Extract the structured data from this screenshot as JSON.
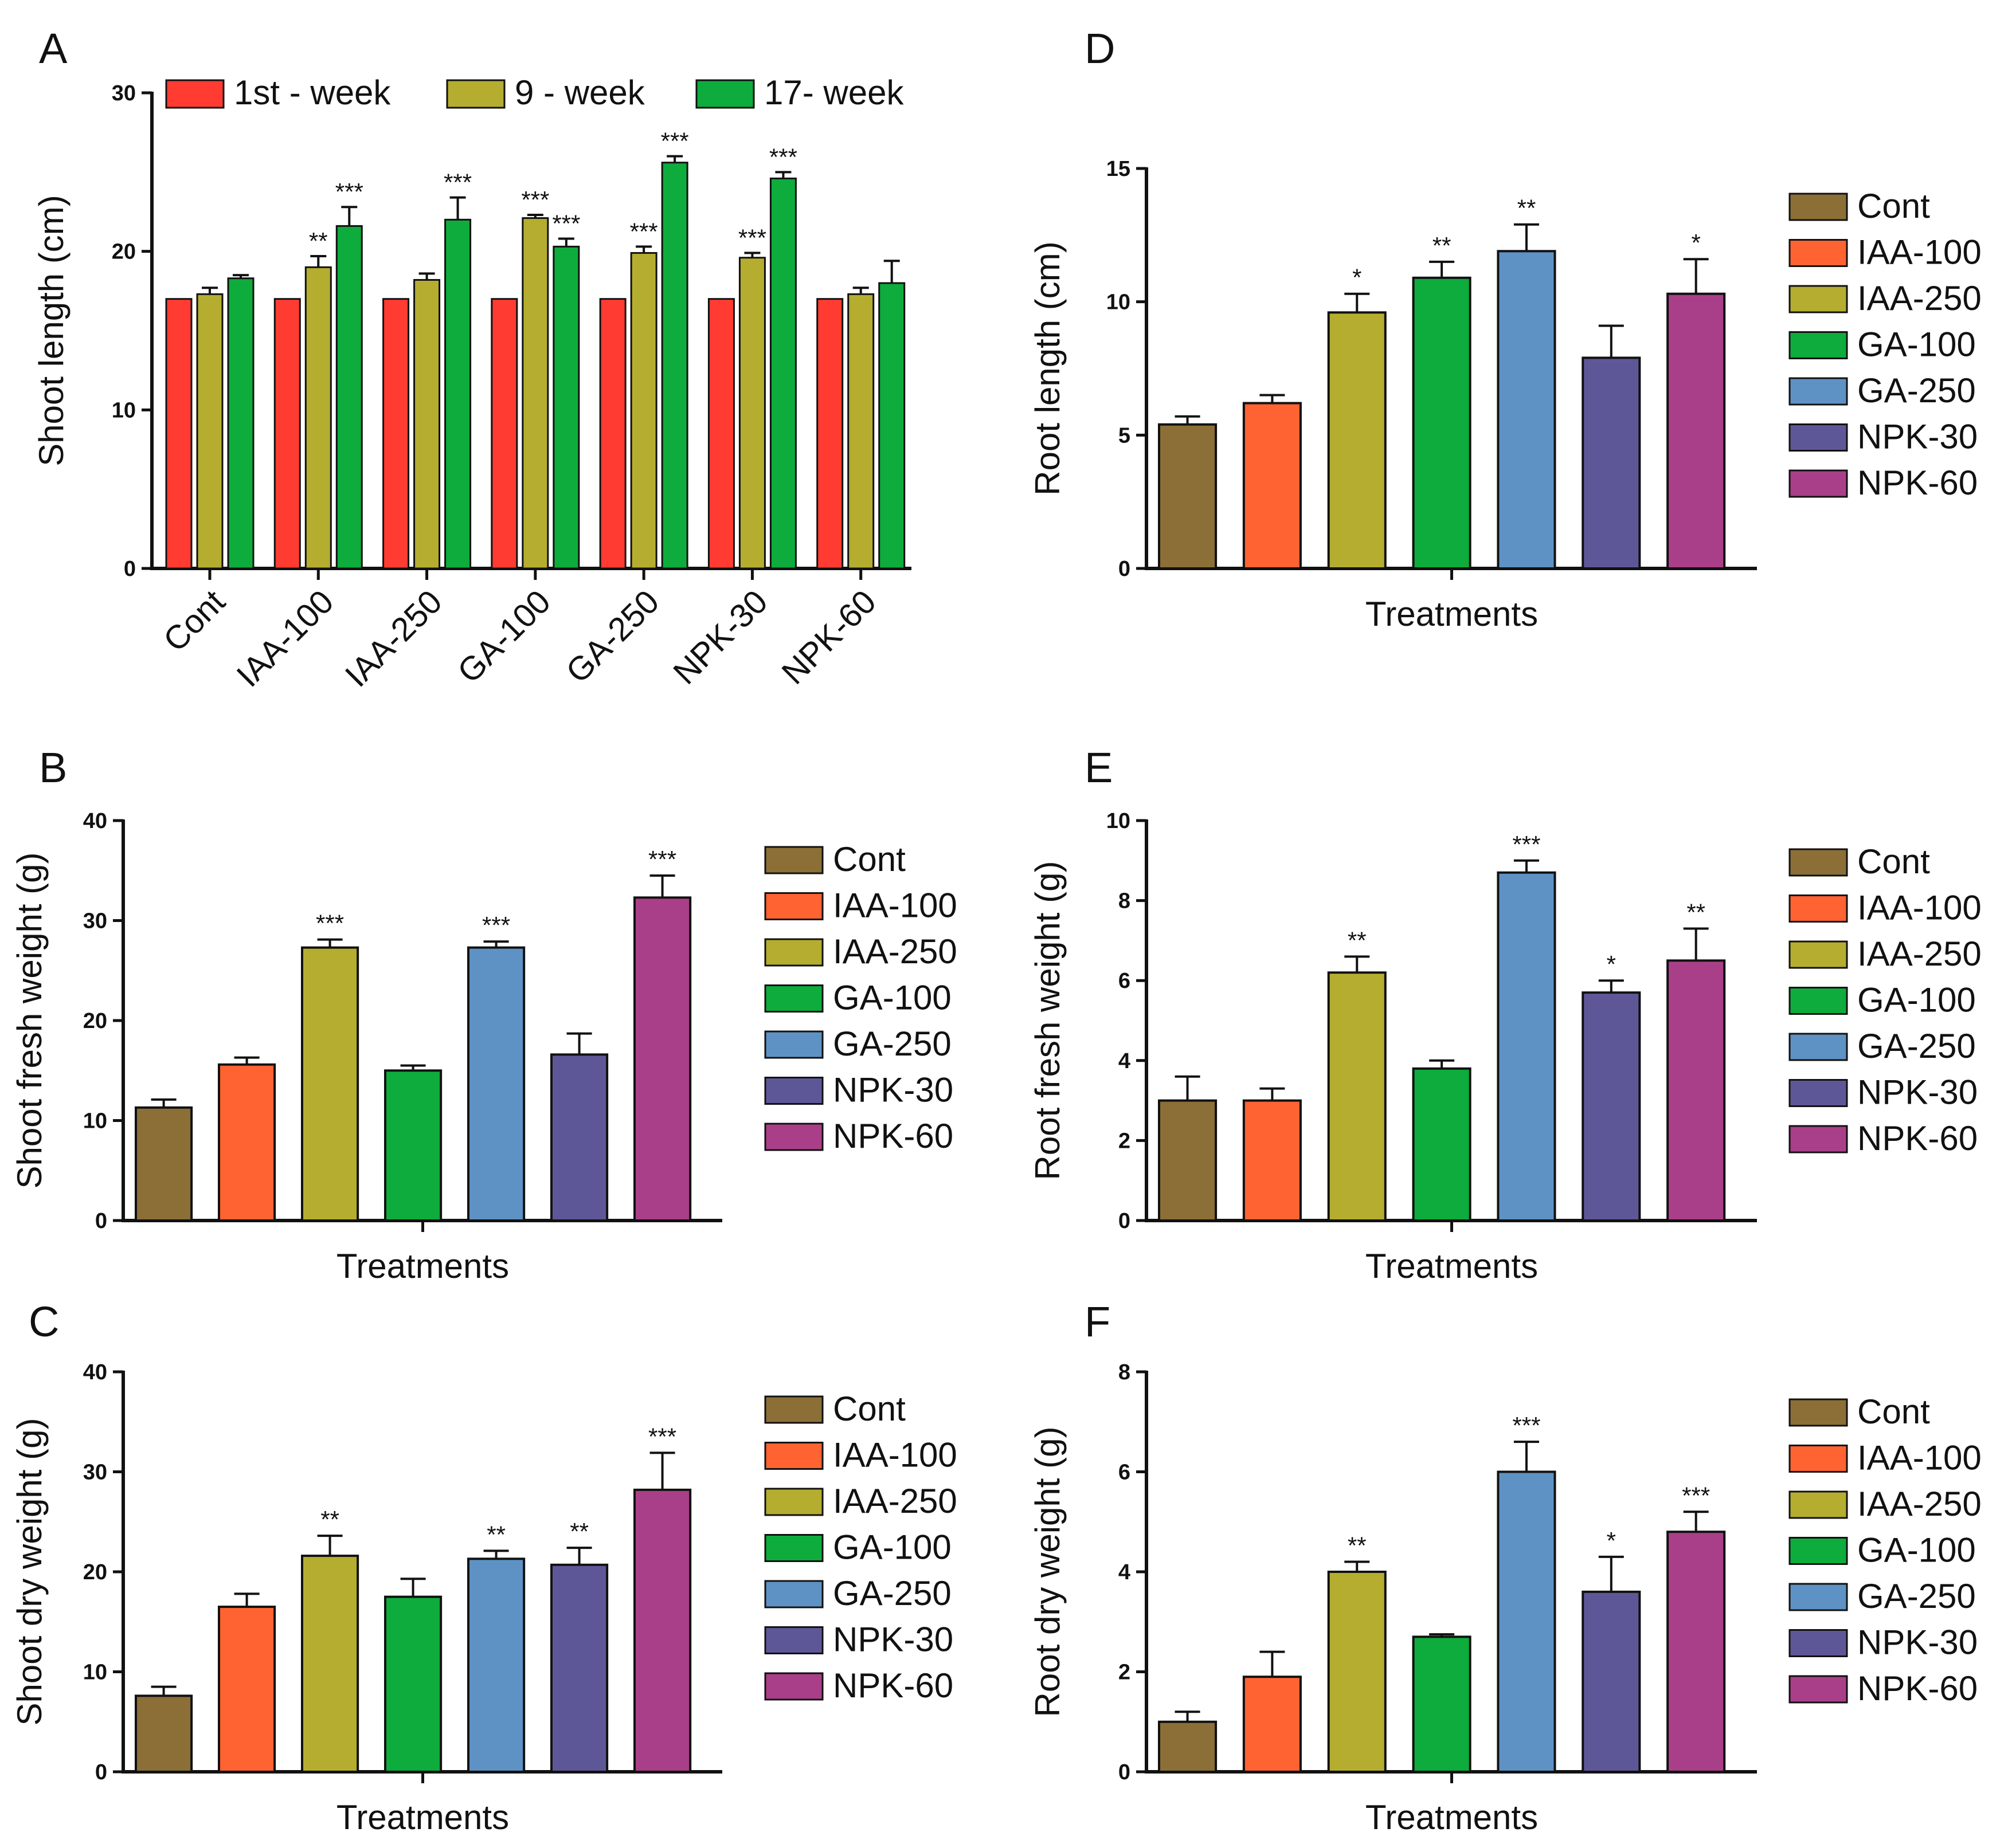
{
  "colors": {
    "Cont": "#8B6F37",
    "IAA-100": "#FF6332",
    "IAA-250": "#B5AD2F",
    "GA-100": "#0DAC3C",
    "GA-250": "#5E92C4",
    "NPK-30": "#5E5797",
    "NPK-60": "#AA3F89",
    "week1": "#FF3B32",
    "week9": "#B5AD2F",
    "week17": "#0DAC3C"
  },
  "chart_data": [
    {
      "id": "A",
      "type": "bar",
      "panel": "A",
      "title": "",
      "xlabel": "",
      "ylabel": "Shoot length (cm)",
      "ylim": [
        0,
        30
      ],
      "yticks": [
        "0",
        "10",
        "20",
        "30"
      ],
      "categories": [
        "Cont",
        "IAA-100",
        "IAA-250",
        "GA-100",
        "GA-250",
        "NPK-30",
        "NPK-60"
      ],
      "legend_position": "top",
      "series": [
        {
          "name": "1st - week",
          "color_key": "week1",
          "values": [
            17,
            17,
            17,
            17,
            17,
            17,
            17
          ],
          "errors": [
            0,
            0,
            0,
            0,
            0,
            0,
            0
          ],
          "stars": [
            "",
            "",
            "",
            "",
            "",
            "",
            ""
          ]
        },
        {
          "name": "9 - week",
          "color_key": "week9",
          "values": [
            17.3,
            19.0,
            18.2,
            22.1,
            19.9,
            19.6,
            17.3
          ],
          "errors": [
            0.4,
            0.7,
            0.4,
            0.2,
            0.4,
            0.3,
            0.4
          ],
          "stars": [
            "",
            "**",
            "",
            "***",
            "***",
            "***",
            ""
          ]
        },
        {
          "name": "17- week",
          "color_key": "week17",
          "values": [
            18.3,
            21.6,
            22.0,
            20.3,
            25.6,
            24.6,
            18.0
          ],
          "errors": [
            0.2,
            1.2,
            1.4,
            0.5,
            0.4,
            0.4,
            1.4
          ],
          "stars": [
            "",
            "***",
            "***",
            "***",
            "***",
            "***",
            ""
          ]
        }
      ]
    },
    {
      "id": "B",
      "type": "bar",
      "panel": "B",
      "title": "",
      "xlabel": "Treatments",
      "ylabel": "Shoot fresh weight (g)",
      "ylim": [
        0,
        40
      ],
      "yticks": [
        "0",
        "10",
        "20",
        "30",
        "40"
      ],
      "categories": [
        "Cont",
        "IAA-100",
        "IAA-250",
        "GA-100",
        "GA-250",
        "NPK-30",
        "NPK-60"
      ],
      "values": [
        11.3,
        15.6,
        27.3,
        15.0,
        27.3,
        16.6,
        32.3
      ],
      "errors": [
        0.8,
        0.7,
        0.8,
        0.5,
        0.6,
        2.1,
        2.2
      ],
      "stars": [
        "",
        "",
        "***",
        "",
        "***",
        "",
        "***"
      ],
      "legend_position": "right"
    },
    {
      "id": "C",
      "type": "bar",
      "panel": "C",
      "title": "",
      "xlabel": "Treatments",
      "ylabel": "Shoot dry weight (g)",
      "ylim": [
        0,
        40
      ],
      "yticks": [
        "0",
        "10",
        "20",
        "30",
        "40"
      ],
      "categories": [
        "Cont",
        "IAA-100",
        "IAA-250",
        "GA-100",
        "GA-250",
        "NPK-30",
        "NPK-60"
      ],
      "values": [
        7.6,
        16.5,
        21.6,
        17.5,
        21.3,
        20.7,
        28.2
      ],
      "errors": [
        0.9,
        1.3,
        2.0,
        1.8,
        0.8,
        1.7,
        3.7
      ],
      "stars": [
        "",
        "",
        "**",
        "",
        "**",
        "**",
        "***"
      ],
      "legend_position": "right"
    },
    {
      "id": "D",
      "type": "bar",
      "panel": "D",
      "title": "",
      "xlabel": "Treatments",
      "ylabel": "Root length (cm)",
      "ylim": [
        0,
        15
      ],
      "yticks": [
        "0",
        "5",
        "10",
        "15"
      ],
      "categories": [
        "Cont",
        "IAA-100",
        "IAA-250",
        "GA-100",
        "GA-250",
        "NPK-30",
        "NPK-60"
      ],
      "values": [
        5.4,
        6.2,
        9.6,
        10.9,
        11.9,
        7.9,
        10.3
      ],
      "errors": [
        0.3,
        0.3,
        0.7,
        0.6,
        1.0,
        1.2,
        1.3
      ],
      "stars": [
        "",
        "",
        "*",
        "**",
        "**",
        "",
        "*"
      ],
      "legend_position": "right"
    },
    {
      "id": "E",
      "type": "bar",
      "panel": "E",
      "title": "",
      "xlabel": "Treatments",
      "ylabel": "Root fresh weight (g)",
      "ylim": [
        0,
        10
      ],
      "yticks": [
        "0",
        "2",
        "4",
        "6",
        "8",
        "10"
      ],
      "categories": [
        "Cont",
        "IAA-100",
        "IAA-250",
        "GA-100",
        "GA-250",
        "NPK-30",
        "NPK-60"
      ],
      "values": [
        3.0,
        3.0,
        6.2,
        3.8,
        8.7,
        5.7,
        6.5
      ],
      "errors": [
        0.6,
        0.3,
        0.4,
        0.2,
        0.3,
        0.3,
        0.8
      ],
      "stars": [
        "",
        "",
        "**",
        "",
        "***",
        "*",
        "**"
      ],
      "legend_position": "right"
    },
    {
      "id": "F",
      "type": "bar",
      "panel": "F",
      "title": "",
      "xlabel": "Treatments",
      "ylabel": "Root dry weight (g)",
      "ylim": [
        0,
        8
      ],
      "yticks": [
        "0",
        "2",
        "4",
        "6",
        "8"
      ],
      "categories": [
        "Cont",
        "IAA-100",
        "IAA-250",
        "GA-100",
        "GA-250",
        "NPK-30",
        "NPK-60"
      ],
      "values": [
        1.0,
        1.9,
        4.0,
        2.7,
        6.0,
        3.6,
        4.8
      ],
      "errors": [
        0.2,
        0.5,
        0.2,
        0.05,
        0.6,
        0.7,
        0.4
      ],
      "stars": [
        "",
        "",
        "**",
        "",
        "***",
        "*",
        "***"
      ],
      "legend_position": "right"
    }
  ]
}
